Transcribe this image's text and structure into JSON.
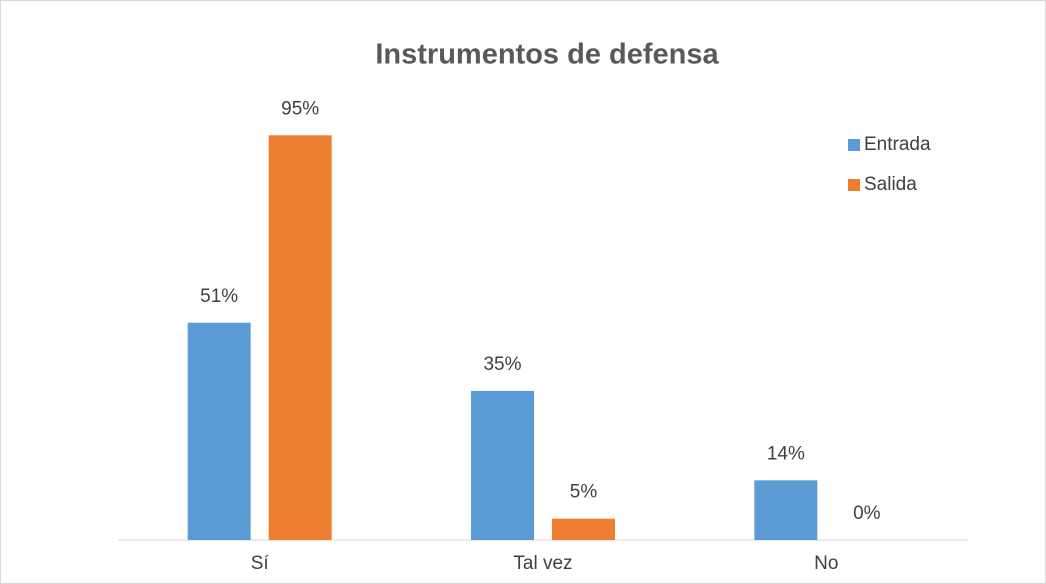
{
  "chart_data": {
    "type": "bar",
    "title": "Instrumentos de defensa",
    "categories": [
      "Sí",
      "Tal vez",
      "No"
    ],
    "series": [
      {
        "name": "Entrada",
        "color": "#5b9bd5",
        "values": [
          51,
          35,
          14
        ],
        "value_labels": [
          "51%",
          "35%",
          "14%"
        ]
      },
      {
        "name": "Salida",
        "color": "#ed7d31",
        "values": [
          95,
          5,
          0
        ],
        "value_labels": [
          "95%",
          "5%",
          "0%"
        ]
      }
    ],
    "ylim": [
      0,
      100
    ],
    "legend": "right"
  }
}
